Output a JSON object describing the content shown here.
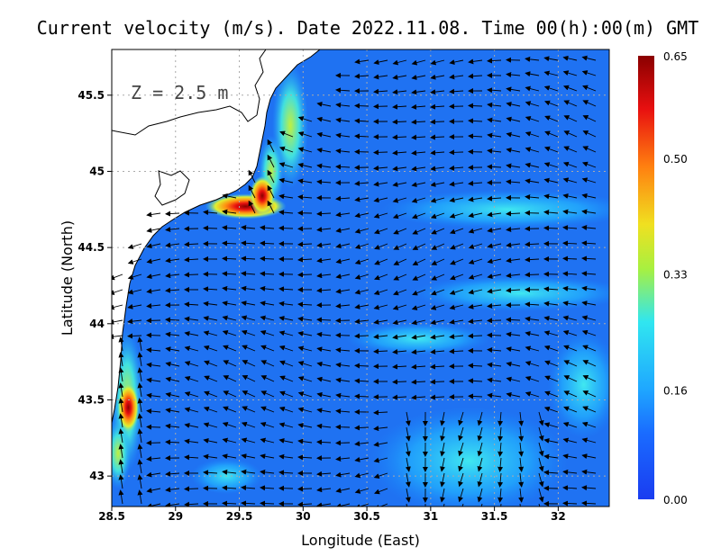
{
  "title": "Current velocity (m/s). Date 2022.11.08. Time 00(h):00(m) GMT",
  "depth_label": "Z = 2.5 m",
  "x_axis": {
    "label": "Longitude (East)",
    "range": [
      28.5,
      32.4
    ],
    "ticks": [
      "28.5",
      "29",
      "29.5",
      "30",
      "30.5",
      "31",
      "31.5",
      "32"
    ]
  },
  "y_axis": {
    "label": "Latitude (North)",
    "range": [
      42.8,
      45.8
    ],
    "ticks": [
      "43",
      "43.5",
      "44",
      "44.5",
      "45",
      "45.5"
    ]
  },
  "colorbar": {
    "min": 0.0,
    "max": 0.65,
    "ticks": [
      "0.65",
      "0.50",
      "0.33",
      "0.16",
      "0.00"
    ],
    "colors": [
      "#1a3cf0",
      "#1fa0ff",
      "#30e6f0",
      "#a8f040",
      "#f0e020",
      "#ff8010",
      "#e81010",
      "#8a0000"
    ]
  },
  "chart_data": {
    "type": "heatmap",
    "variable": "Current velocity (m/s)",
    "date": "2022.11.08",
    "time": "00(h):00(m) GMT",
    "depth": "Z = 2.5 m",
    "grid": "on",
    "velocity_hotspots": [
      {
        "lon": 29.65,
        "lat": 44.78,
        "speed": 0.6
      },
      {
        "lon": 28.63,
        "lat": 43.45,
        "speed": 0.55
      },
      {
        "lon": 29.9,
        "lat": 45.3,
        "speed": 0.35
      },
      {
        "lon": 31.5,
        "lat": 44.75,
        "speed": 0.22
      },
      {
        "lon": 31.3,
        "lat": 43.1,
        "speed": 0.2
      }
    ]
  }
}
